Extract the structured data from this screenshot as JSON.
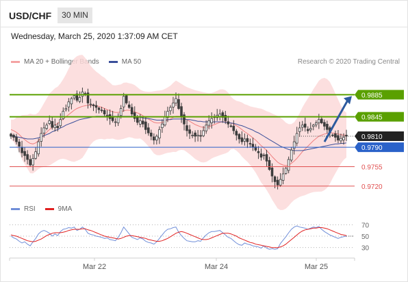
{
  "header": {
    "symbol": "USD/CHF",
    "timeframe": "30 MIN",
    "datetime": "Wednesday, March 25, 2020 1:37:09 AM CET"
  },
  "legend": {
    "ma20_label": "MA 20 + Bollinger Bands",
    "ma50_label": "MA 50",
    "copyright": "Research © 2020 Trading Central"
  },
  "rsi_legend": {
    "rsi_label": "RSI",
    "ma_label": "9MA"
  },
  "colors": {
    "resistance": "#5aa000",
    "support": "#2a62c9",
    "minor_support": "#e05050",
    "price_label": "#222222",
    "candle": "#3d3d3d",
    "bollinger": "#fcd9d9",
    "ma20": "#f08080",
    "ma50": "#3a4f9a",
    "rsi": "#6f8ed8",
    "rsi_ma": "#e02020",
    "arrow": "#2c5a9e"
  },
  "chart_data": [
    {
      "type": "candlestick",
      "title": "USD/CHF",
      "subtitle": "30 MIN",
      "ylim": [
        0.97,
        0.992
      ],
      "grid": false,
      "x_ticks": [
        "Mar 22",
        "Mar 24",
        "Mar 25"
      ],
      "levels": [
        {
          "value": 0.9885,
          "label": "0.9885",
          "kind": "resistance"
        },
        {
          "value": 0.9845,
          "label": "0.9845",
          "kind": "resistance"
        },
        {
          "value": 0.981,
          "label": "0.9810",
          "kind": "last_price"
        },
        {
          "value": 0.979,
          "label": "0.9790",
          "kind": "support"
        },
        {
          "value": 0.9755,
          "label": "0.9755",
          "kind": "minor_support"
        },
        {
          "value": 0.972,
          "label": "0.9720",
          "kind": "minor_support"
        }
      ],
      "forecast": {
        "from": 0.98,
        "to": 0.9885,
        "direction": "up"
      },
      "close": [
        0.981,
        0.9808,
        0.98,
        0.9792,
        0.978,
        0.9775,
        0.9768,
        0.9758,
        0.977,
        0.9782,
        0.98,
        0.9815,
        0.9825,
        0.983,
        0.9838,
        0.9826,
        0.983,
        0.9825,
        0.984,
        0.9855,
        0.986,
        0.9872,
        0.9878,
        0.9883,
        0.9875,
        0.988,
        0.989,
        0.9885,
        0.987,
        0.9868,
        0.9865,
        0.9862,
        0.9858,
        0.9856,
        0.985,
        0.9848,
        0.9842,
        0.9838,
        0.9836,
        0.9845,
        0.986,
        0.9882,
        0.987,
        0.9862,
        0.985,
        0.9842,
        0.9835,
        0.9838,
        0.9832,
        0.9822,
        0.9816,
        0.981,
        0.9803,
        0.981,
        0.9822,
        0.9832,
        0.9845,
        0.9855,
        0.9862,
        0.987,
        0.9878,
        0.986,
        0.9845,
        0.9832,
        0.982,
        0.9815,
        0.9812,
        0.981,
        0.9812,
        0.981,
        0.982,
        0.983,
        0.9838,
        0.9842,
        0.9845,
        0.9848,
        0.985,
        0.9844,
        0.9838,
        0.9832,
        0.9828,
        0.982,
        0.9812,
        0.9805,
        0.98,
        0.9805,
        0.98,
        0.9796,
        0.979,
        0.9785,
        0.978,
        0.9772,
        0.9776,
        0.9765,
        0.975,
        0.9738,
        0.9728,
        0.9722,
        0.9732,
        0.9742,
        0.9752,
        0.9768,
        0.9785,
        0.98,
        0.9815,
        0.9825,
        0.983,
        0.9826,
        0.982,
        0.9824,
        0.983,
        0.9834,
        0.984,
        0.9834,
        0.9828,
        0.9822,
        0.9816,
        0.9812,
        0.9808,
        0.9803,
        0.9806,
        0.9808,
        0.981
      ],
      "ma20": [
        0.9822,
        0.982,
        0.9817,
        0.9813,
        0.9808,
        0.9804,
        0.98,
        0.9797,
        0.9796,
        0.9798,
        0.9802,
        0.9807,
        0.9812,
        0.9817,
        0.9822,
        0.9826,
        0.983,
        0.9833,
        0.9837,
        0.9841,
        0.9845,
        0.9849,
        0.9853,
        0.9857,
        0.986,
        0.9862,
        0.9864,
        0.9865,
        0.9866,
        0.9866,
        0.9866,
        0.9865,
        0.9864,
        0.9862,
        0.986,
        0.9858,
        0.9856,
        0.9854,
        0.9853,
        0.9853,
        0.9854,
        0.9856,
        0.9857,
        0.9857,
        0.9856,
        0.9854,
        0.9852,
        0.985,
        0.9847,
        0.9844,
        0.9841,
        0.9838,
        0.9835,
        0.9834,
        0.9834,
        0.9835,
        0.9837,
        0.9839,
        0.9841,
        0.9844,
        0.9846,
        0.9846,
        0.9845,
        0.9843,
        0.984,
        0.9837,
        0.9834,
        0.9831,
        0.9829,
        0.9827,
        0.9826,
        0.9826,
        0.9827,
        0.9829,
        0.9831,
        0.9833,
        0.9835,
        0.9836,
        0.9836,
        0.9835,
        0.9834,
        0.9832,
        0.9829,
        0.9826,
        0.9822,
        0.9818,
        0.9815,
        0.9811,
        0.9807,
        0.9803,
        0.9798,
        0.9793,
        0.9789,
        0.9784,
        0.9779,
        0.9773,
        0.9768,
        0.9763,
        0.976,
        0.9758,
        0.9757,
        0.9758,
        0.9761,
        0.9765,
        0.977,
        0.9776,
        0.9782,
        0.9787,
        0.9792,
        0.9797,
        0.9802,
        0.9806,
        0.981,
        0.9812,
        0.9814,
        0.9815,
        0.9816,
        0.9816,
        0.9815,
        0.9814,
        0.9813,
        0.9812,
        0.9812
      ],
      "ma50": [
        0.981,
        0.981,
        0.9809,
        0.9808,
        0.9807,
        0.9806,
        0.9805,
        0.9805,
        0.9805,
        0.9806,
        0.9807,
        0.9809,
        0.9811,
        0.9813,
        0.9815,
        0.9818,
        0.982,
        0.9822,
        0.9825,
        0.9827,
        0.983,
        0.9832,
        0.9834,
        0.9836,
        0.9838,
        0.984,
        0.9841,
        0.9842,
        0.9843,
        0.9844,
        0.9845,
        0.9846,
        0.9846,
        0.9846,
        0.9846,
        0.9846,
        0.9846,
        0.9846,
        0.9846,
        0.9846,
        0.9846,
        0.9846,
        0.9846,
        0.9846,
        0.9846,
        0.9845,
        0.9845,
        0.9844,
        0.9843,
        0.9842,
        0.9842,
        0.9841,
        0.984,
        0.9839,
        0.9839,
        0.9839,
        0.9839,
        0.984,
        0.984,
        0.9841,
        0.9841,
        0.9841,
        0.9841,
        0.9841,
        0.984,
        0.984,
        0.9839,
        0.9838,
        0.9837,
        0.9837,
        0.9836,
        0.9836,
        0.9836,
        0.9836,
        0.9836,
        0.9836,
        0.9836,
        0.9836,
        0.9835,
        0.9835,
        0.9834,
        0.9833,
        0.9832,
        0.983,
        0.9829,
        0.9827,
        0.9825,
        0.9823,
        0.9821,
        0.9818,
        0.9816,
        0.9813,
        0.981,
        0.9807,
        0.9804,
        0.9801,
        0.9798,
        0.9795,
        0.9792,
        0.979,
        0.9788,
        0.9786,
        0.9785,
        0.9784,
        0.9784,
        0.9784,
        0.9784,
        0.9785,
        0.9786,
        0.9787,
        0.9788,
        0.9789,
        0.979,
        0.9791,
        0.9792,
        0.9793,
        0.9794,
        0.9795,
        0.9796,
        0.9796,
        0.9797,
        0.9797,
        0.9798
      ]
    },
    {
      "type": "line",
      "title": "RSI",
      "ylim": [
        20,
        80
      ],
      "y_ticks": [
        70,
        50,
        30
      ],
      "series": [
        {
          "name": "RSI",
          "values": [
            50,
            47,
            45,
            41,
            38,
            40,
            36,
            33,
            40,
            46,
            54,
            58,
            60,
            58,
            55,
            50,
            54,
            51,
            58,
            62,
            63,
            65,
            64,
            66,
            60,
            62,
            66,
            62,
            55,
            53,
            52,
            50,
            49,
            48,
            46,
            47,
            44,
            43,
            42,
            48,
            56,
            66,
            60,
            54,
            48,
            46,
            44,
            47,
            45,
            41,
            39,
            38,
            36,
            40,
            46,
            52,
            58,
            62,
            63,
            65,
            66,
            57,
            51,
            46,
            42,
            41,
            40,
            40,
            42,
            41,
            47,
            52,
            56,
            58,
            58,
            59,
            60,
            56,
            52,
            48,
            46,
            42,
            38,
            35,
            34,
            38,
            36,
            35,
            33,
            32,
            31,
            29,
            33,
            29,
            27,
            28,
            27,
            28,
            37,
            43,
            49,
            56,
            62,
            66,
            68,
            66,
            65,
            64,
            62,
            64,
            66,
            65,
            67,
            62,
            58,
            55,
            52,
            50,
            48,
            46,
            48,
            49,
            50
          ]
        },
        {
          "name": "9MA",
          "values": [
            52,
            51,
            50,
            48,
            46,
            44,
            42,
            41,
            40,
            41,
            43,
            45,
            48,
            51,
            53,
            55,
            56,
            56,
            56,
            57,
            58,
            60,
            61,
            62,
            62,
            62,
            63,
            63,
            61,
            60,
            58,
            56,
            54,
            52,
            50,
            49,
            48,
            47,
            46,
            45,
            46,
            48,
            50,
            51,
            51,
            50,
            49,
            48,
            47,
            46,
            44,
            43,
            42,
            41,
            41,
            42,
            44,
            46,
            49,
            52,
            55,
            57,
            58,
            57,
            55,
            53,
            51,
            49,
            47,
            45,
            44,
            44,
            45,
            47,
            49,
            51,
            53,
            55,
            55,
            55,
            54,
            52,
            50,
            47,
            45,
            43,
            41,
            39,
            38,
            36,
            35,
            34,
            33,
            32,
            31,
            30,
            30,
            30,
            31,
            33,
            36,
            40,
            44,
            48,
            52,
            56,
            59,
            61,
            62,
            63,
            64,
            64,
            65,
            65,
            64,
            63,
            61,
            59,
            57,
            55,
            53,
            52,
            51
          ]
        }
      ]
    }
  ]
}
